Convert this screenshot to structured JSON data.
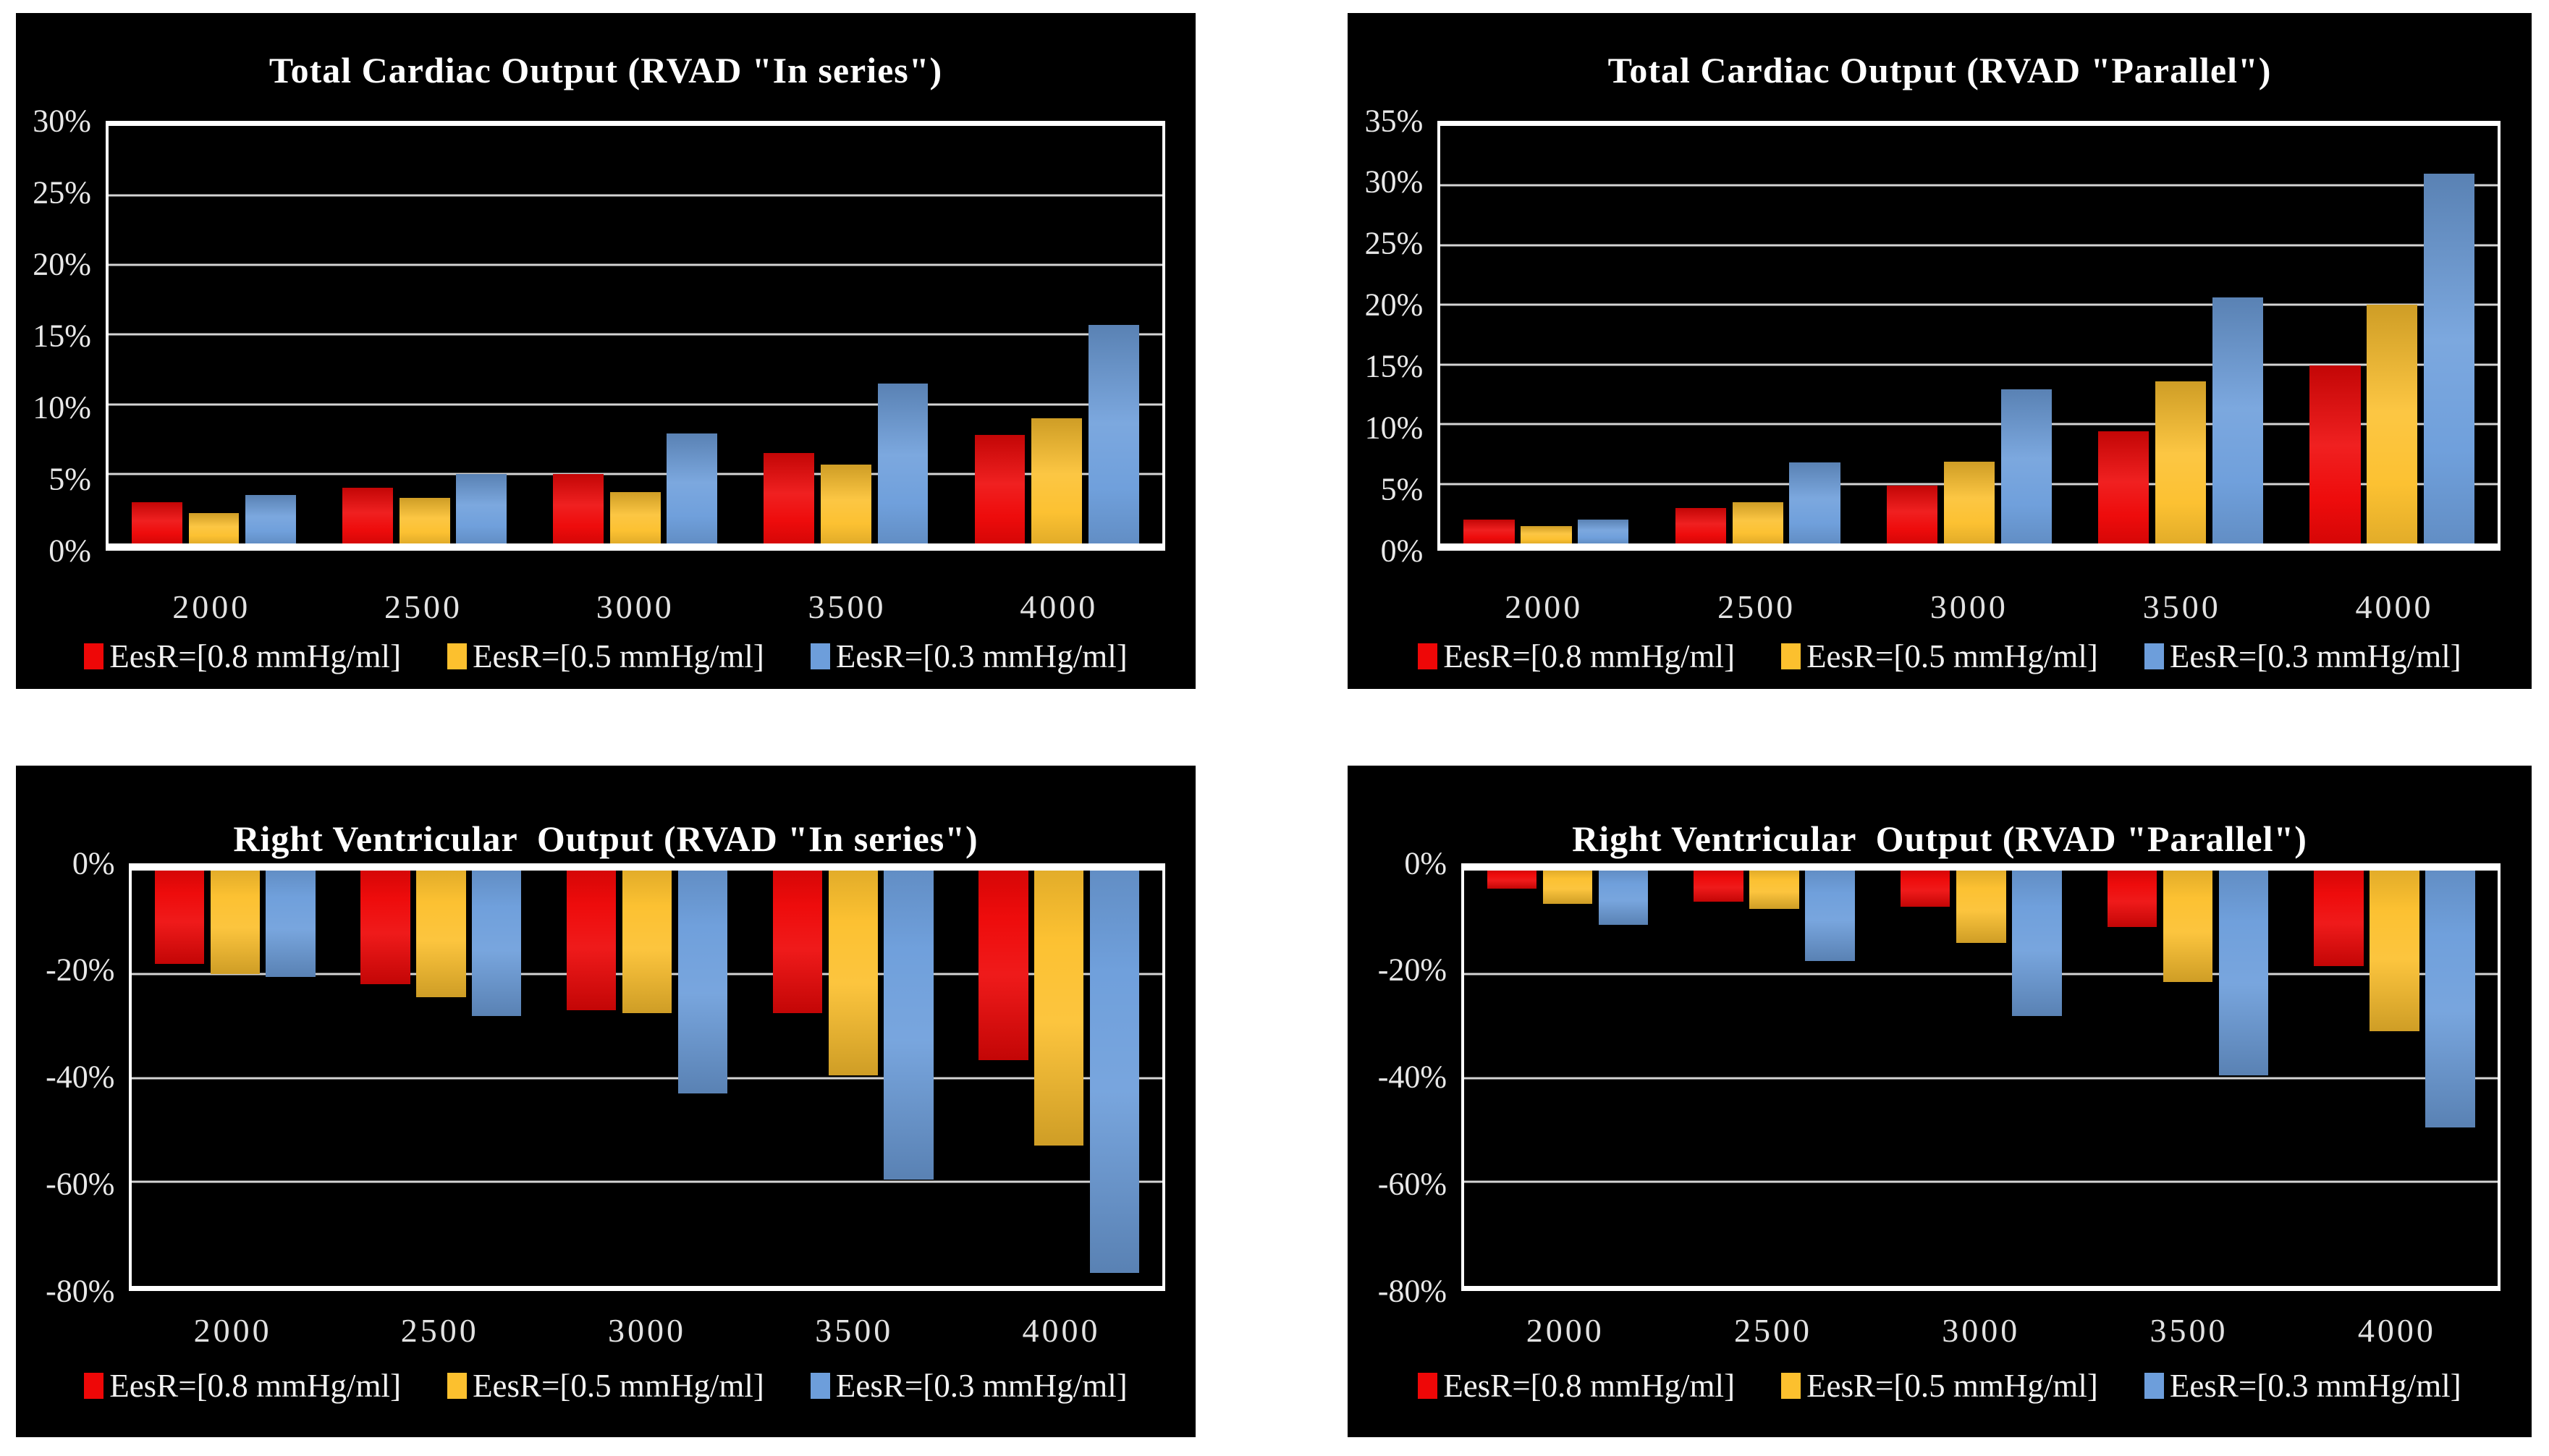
{
  "colors": {
    "page_bg": "#ffffff",
    "panel_bg": "#000000",
    "plot_frame": "#ffffff",
    "gridline": "#d4d4d4",
    "title_text": "#ffffff",
    "axis_text": "#e8e8e8",
    "series_red": "#ee0707",
    "series_gold": "#fcc02e",
    "series_blue": "#6d9edb"
  },
  "chart_data": [
    {
      "type": "bar",
      "position": "top-left",
      "title": "Total Cardiac Output (RVAD \"In series\")",
      "orientation": "up",
      "gridlines": true,
      "legend_position": "bottom",
      "categories": [
        "2000",
        "2500",
        "3000",
        "3500",
        "4000"
      ],
      "series": [
        {
          "name": "EesR=[0.8 mmHg/ml]",
          "color": "#ee0707",
          "values": [
            3.0,
            4.0,
            5.0,
            6.5,
            7.8
          ]
        },
        {
          "name": "EesR=[0.5 mmHg/ml]",
          "color": "#fcc02e",
          "values": [
            2.2,
            3.3,
            3.7,
            5.7,
            9.0
          ]
        },
        {
          "name": "EesR=[0.3 mmHg/ml]",
          "color": "#6d9edb",
          "values": [
            3.5,
            5.0,
            7.9,
            11.5,
            15.7
          ]
        }
      ],
      "ylim": [
        0,
        30
      ],
      "yticks": [
        {
          "value": 30,
          "label": "30%"
        },
        {
          "value": 25,
          "label": "25%"
        },
        {
          "value": 20,
          "label": "20%"
        },
        {
          "value": 15,
          "label": "15%"
        },
        {
          "value": 10,
          "label": "10%"
        },
        {
          "value": 5,
          "label": "5%"
        },
        {
          "value": 0,
          "label": "0%"
        }
      ]
    },
    {
      "type": "bar",
      "position": "top-right",
      "title": "Total Cardiac Output (RVAD \"Parallel\")",
      "orientation": "up",
      "gridlines": true,
      "legend_position": "bottom",
      "categories": [
        "2000",
        "2500",
        "3000",
        "3500",
        "4000"
      ],
      "series": [
        {
          "name": "EesR=[0.8 mmHg/ml]",
          "color": "#ee0707",
          "values": [
            2.0,
            3.0,
            4.9,
            9.4,
            14.9
          ]
        },
        {
          "name": "EesR=[0.5 mmHg/ml]",
          "color": "#fcc02e",
          "values": [
            1.5,
            3.5,
            6.9,
            13.6,
            20.0
          ]
        },
        {
          "name": "EesR=[0.3 mmHg/ml]",
          "color": "#6d9edb",
          "values": [
            2.0,
            6.8,
            12.9,
            20.6,
            31.0
          ]
        }
      ],
      "ylim": [
        0,
        35
      ],
      "yticks": [
        {
          "value": 35,
          "label": "35%"
        },
        {
          "value": 30,
          "label": "30%"
        },
        {
          "value": 25,
          "label": "25%"
        },
        {
          "value": 20,
          "label": "20%"
        },
        {
          "value": 15,
          "label": "15%"
        },
        {
          "value": 10,
          "label": "10%"
        },
        {
          "value": 5,
          "label": "5%"
        },
        {
          "value": 0,
          "label": "0%"
        }
      ]
    },
    {
      "type": "bar",
      "position": "bottom-left",
      "title": "Right Ventricular  Output (RVAD \"In series\")",
      "orientation": "down",
      "gridlines": true,
      "legend_position": "bottom",
      "categories": [
        "2000",
        "2500",
        "3000",
        "3500",
        "4000"
      ],
      "series": [
        {
          "name": "EesR=[0.8 mmHg/ml]",
          "color": "#ee0707",
          "values": [
            -18.0,
            -22.0,
            -27.0,
            -27.5,
            -36.5
          ]
        },
        {
          "name": "EesR=[0.5 mmHg/ml]",
          "color": "#fcc02e",
          "values": [
            -20.0,
            -24.5,
            -27.5,
            -39.5,
            -53.0
          ]
        },
        {
          "name": "EesR=[0.3 mmHg/ml]",
          "color": "#6d9edb",
          "values": [
            -20.5,
            -28.0,
            -43.0,
            -59.5,
            -77.5
          ]
        }
      ],
      "ylim": [
        0,
        -80
      ],
      "yticks": [
        {
          "value": 0,
          "label": "0%"
        },
        {
          "value": -20,
          "label": "-20%"
        },
        {
          "value": -40,
          "label": "-40%"
        },
        {
          "value": -60,
          "label": "-60%"
        },
        {
          "value": -80,
          "label": "-80%"
        }
      ]
    },
    {
      "type": "bar",
      "position": "bottom-right",
      "title": "Right Ventricular  Output (RVAD \"Parallel\")",
      "orientation": "down",
      "gridlines": true,
      "legend_position": "bottom",
      "categories": [
        "2000",
        "2500",
        "3000",
        "3500",
        "4000"
      ],
      "series": [
        {
          "name": "EesR=[0.8 mmHg/ml]",
          "color": "#ee0707",
          "values": [
            -3.5,
            -6.0,
            -7.0,
            -11.0,
            -18.5
          ]
        },
        {
          "name": "EesR=[0.5 mmHg/ml]",
          "color": "#fcc02e",
          "values": [
            -6.5,
            -7.5,
            -14.0,
            -21.5,
            -31.0
          ]
        },
        {
          "name": "EesR=[0.3 mmHg/ml]",
          "color": "#6d9edb",
          "values": [
            -10.5,
            -17.5,
            -28.0,
            -39.5,
            -49.5
          ]
        }
      ],
      "ylim": [
        0,
        -80
      ],
      "yticks": [
        {
          "value": 0,
          "label": "0%"
        },
        {
          "value": -20,
          "label": "-20%"
        },
        {
          "value": -40,
          "label": "-40%"
        },
        {
          "value": -60,
          "label": "-60%"
        },
        {
          "value": -80,
          "label": "-80%"
        }
      ]
    }
  ]
}
